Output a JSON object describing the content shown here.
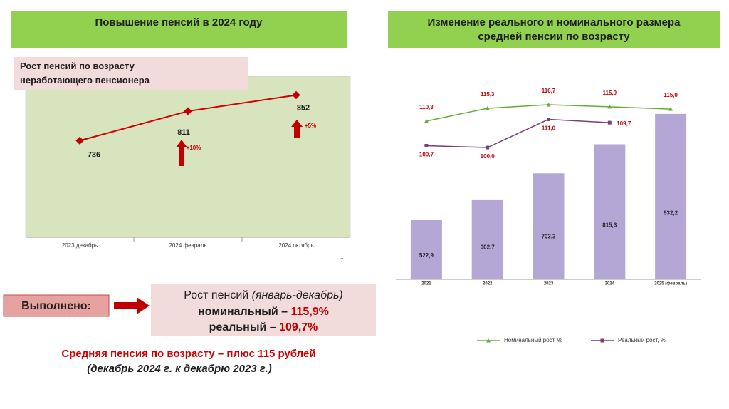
{
  "left_title": "Повышение пенсий в 2024 году",
  "right_title": "Изменение реального и номинального размера средней пенсии по возрасту",
  "slide_number": "7",
  "done_label": "Выполнено:",
  "summary": {
    "line1": "Рост пенсий",
    "line1_italic": "(январь-декабрь)",
    "nominal_label": "номинальный –",
    "nominal_value": "115,9%",
    "real_label": "реальный –",
    "real_value": "109,7%"
  },
  "footer": {
    "line1": "Средняя пенсия по возрасту – плюс 115 рублей",
    "line2": "(декабрь 2024 г. к декабрю 2023 г.)"
  },
  "chart_data": [
    {
      "type": "line",
      "title": "Рост пенсий по возрасту неработающего пенсионера",
      "categories": [
        "2023 декабрь",
        "2024 февраль",
        "2024 октябрь"
      ],
      "values": [
        736,
        811,
        852
      ],
      "color": "#d00000",
      "ylim": [
        490,
        900
      ],
      "annotations": [
        "+10%",
        "+5%"
      ]
    },
    {
      "type": "bar_line",
      "categories": [
        "2021",
        "2022",
        "2023",
        "2024",
        "2025 (февраль)"
      ],
      "values": [
        522.9,
        602.7,
        703.3,
        815.3,
        932.2
      ],
      "value_labels": [
        "522,9",
        "602,7",
        "703,3",
        "815,3",
        "932,2"
      ],
      "color": "#b4a7d6",
      "ylim": [
        295,
        1028
      ],
      "y2lim": [
        48.6,
        122.8
      ],
      "series": [
        {
          "name": "Номинальный рост, %",
          "color": "#6aaa3a",
          "axis": "y2",
          "values": [
            110.3,
            115.3,
            116.7,
            115.9,
            115.0
          ],
          "value_labels": [
            "110,3",
            "115,3",
            "116,7",
            "115,9",
            "115,0"
          ]
        },
        {
          "name": "Реальный рост, %",
          "color": "#7b3f6e",
          "axis": "y2",
          "values": [
            100.7,
            100.0,
            111.0,
            109.7,
            null
          ],
          "value_labels": [
            "100,7",
            "100,0",
            "111,0",
            "109,7",
            null
          ]
        }
      ]
    }
  ]
}
